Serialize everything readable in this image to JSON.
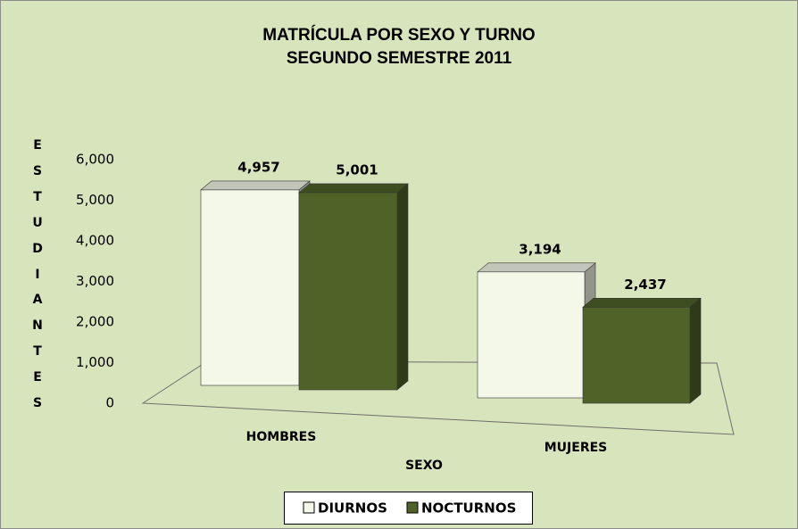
{
  "chart_data": {
    "type": "bar3d",
    "title": [
      "MATRÍCULA POR SEXO Y TURNO",
      "SEGUNDO SEMESTRE 2011"
    ],
    "y_label": "ESTUDIANTES",
    "x_label": "SEXO",
    "categories": [
      "HOMBRES",
      "MUJERES"
    ],
    "series": [
      {
        "name": "DIURNOS",
        "color": "#f3f8e8",
        "values": [
          4957,
          3194
        ],
        "value_labels": [
          "4,957",
          "3,194"
        ]
      },
      {
        "name": "NOCTURNOS",
        "color": "#4f6228",
        "values": [
          5001,
          2437
        ],
        "value_labels": [
          "5,001",
          "2,437"
        ]
      }
    ],
    "ylim": [
      0,
      6000
    ],
    "yticks": [
      0,
      {
        "value": 1000,
        "label": "1,000"
      },
      {
        "value": 2000,
        "label": "2,000"
      },
      {
        "value": 3000,
        "label": "3,000"
      },
      {
        "value": 4000,
        "label": "4,000"
      },
      {
        "value": 5000,
        "label": "5,000"
      },
      {
        "value": 6000,
        "label": "6,000"
      }
    ],
    "legend": "bottom"
  }
}
